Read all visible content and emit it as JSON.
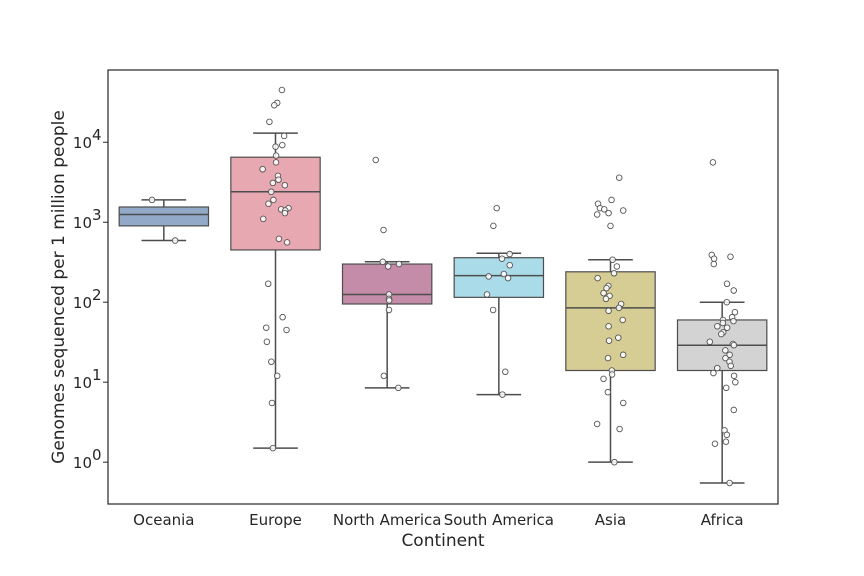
{
  "chart_data": {
    "type": "box",
    "xlabel": "Continent",
    "ylabel": "Genomes sequenced per 1 million people",
    "yscale": "log",
    "ylim": [
      0.3,
      80000
    ],
    "y_ticks": [
      {
        "value": 1,
        "base": "10",
        "exp": "0"
      },
      {
        "value": 10,
        "base": "10",
        "exp": "1"
      },
      {
        "value": 100,
        "base": "10",
        "exp": "2"
      },
      {
        "value": 1000,
        "base": "10",
        "exp": "3"
      },
      {
        "value": 10000,
        "base": "10",
        "exp": "4"
      }
    ],
    "grid": false,
    "categories": [
      "Oceania",
      "Europe",
      "North America",
      "South America",
      "Asia",
      "Africa"
    ],
    "boxes": [
      {
        "category": "Oceania",
        "color": "#92aac7",
        "whisker_low": 590,
        "q1": 900,
        "median": 1250,
        "q3": 1550,
        "whisker_high": 1900,
        "points": [
          590,
          1900
        ]
      },
      {
        "category": "Europe",
        "color": "#e8a8b2",
        "whisker_low": 1.5,
        "q1": 450,
        "median": 2400,
        "q3": 6500,
        "whisker_high": 13000,
        "points": [
          45000,
          31000,
          29000,
          18000,
          12000,
          9200,
          8800,
          6800,
          5600,
          4600,
          3800,
          3400,
          3100,
          2900,
          2400,
          1900,
          1700,
          1500,
          1450,
          1400,
          1300,
          1100,
          620,
          560,
          170,
          65,
          48,
          45,
          32,
          18,
          12,
          5.5,
          1.5
        ]
      },
      {
        "category": "North America",
        "color": "#c48ca8",
        "whisker_low": 8.5,
        "q1": 95,
        "median": 125,
        "q3": 300,
        "whisker_high": 320,
        "points": [
          6000,
          800,
          320,
          300,
          280,
          125,
          110,
          105,
          80,
          12,
          8.5
        ]
      },
      {
        "category": "South America",
        "color": "#a9dbe8",
        "whisker_low": 7,
        "q1": 115,
        "median": 215,
        "q3": 360,
        "whisker_high": 410,
        "points": [
          1500,
          900,
          400,
          350,
          290,
          225,
          210,
          200,
          125,
          80,
          13.5,
          7
        ]
      },
      {
        "category": "Asia",
        "color": "#d6cd94",
        "whisker_low": 1,
        "q1": 14,
        "median": 85,
        "q3": 240,
        "whisker_high": 340,
        "points": [
          3600,
          1900,
          1700,
          1500,
          1450,
          1400,
          1300,
          1250,
          900,
          340,
          280,
          230,
          200,
          160,
          150,
          130,
          120,
          110,
          95,
          85,
          78,
          60,
          50,
          36,
          33,
          22,
          20,
          14,
          12.5,
          11,
          7.5,
          5.5,
          3,
          2.6,
          1
        ]
      },
      {
        "category": "Africa",
        "color": "#d3d3d3",
        "whisker_low": 0.55,
        "q1": 14,
        "median": 29,
        "q3": 60,
        "whisker_high": 100,
        "points": [
          5600,
          390,
          370,
          350,
          300,
          170,
          140,
          100,
          75,
          65,
          60,
          58,
          55,
          50,
          48,
          42,
          40,
          32,
          30,
          29,
          25,
          22,
          20,
          18,
          16,
          15,
          13,
          12,
          10,
          8.5,
          4.5,
          2.5,
          2.2,
          1.8,
          1.7,
          0.55
        ]
      }
    ]
  }
}
